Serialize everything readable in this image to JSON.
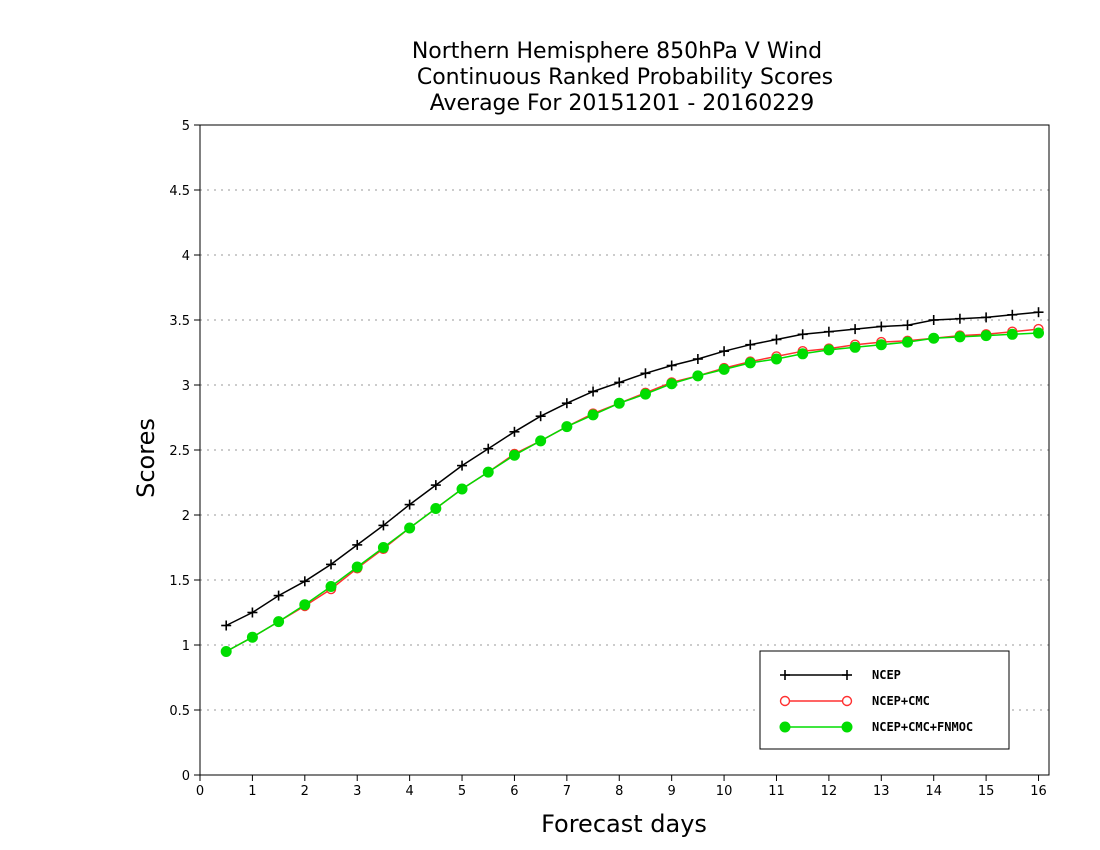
{
  "chart_data": {
    "type": "line",
    "title": [
      "Northern Hemisphere 850hPa V Wind",
      "Continuous Ranked Probability Scores",
      "Average For 20151201 - 20160229"
    ],
    "xlabel": "Forecast days",
    "ylabel": "Scores",
    "xlim": [
      0,
      16.2
    ],
    "ylim": [
      0,
      5
    ],
    "xticks": [
      "0",
      "1",
      "2",
      "3",
      "4",
      "5",
      "6",
      "7",
      "8",
      "9",
      "10",
      "11",
      "12",
      "13",
      "14",
      "15",
      "16"
    ],
    "yticks": [
      "0",
      "0.5",
      "1",
      "1.5",
      "2",
      "2.5",
      "3",
      "3.5",
      "4",
      "4.5",
      "5"
    ],
    "grid": true,
    "legend_position": "bottom-right",
    "x": [
      0.5,
      1,
      1.5,
      2,
      2.5,
      3,
      3.5,
      4,
      4.5,
      5,
      5.5,
      6,
      6.5,
      7,
      7.5,
      8,
      8.5,
      9,
      9.5,
      10,
      10.5,
      11,
      11.5,
      12,
      12.5,
      13,
      13.5,
      14,
      14.5,
      15,
      15.5,
      16
    ],
    "series": [
      {
        "name": "NCEP",
        "color": "#000000",
        "marker": "plus",
        "values": [
          1.15,
          1.25,
          1.38,
          1.49,
          1.62,
          1.77,
          1.92,
          2.08,
          2.23,
          2.38,
          2.51,
          2.64,
          2.76,
          2.86,
          2.95,
          3.02,
          3.09,
          3.15,
          3.2,
          3.26,
          3.31,
          3.35,
          3.39,
          3.41,
          3.43,
          3.45,
          3.46,
          3.5,
          3.51,
          3.52,
          3.54,
          3.56
        ]
      },
      {
        "name": "NCEP+CMC",
        "color": "#ff3030",
        "marker": "open-circle",
        "values": [
          0.95,
          1.06,
          1.18,
          1.3,
          1.43,
          1.59,
          1.74,
          1.9,
          2.05,
          2.2,
          2.33,
          2.47,
          2.57,
          2.68,
          2.78,
          2.86,
          2.94,
          3.02,
          3.07,
          3.13,
          3.18,
          3.22,
          3.26,
          3.28,
          3.31,
          3.33,
          3.34,
          3.36,
          3.38,
          3.39,
          3.41,
          3.43
        ]
      },
      {
        "name": "NCEP+CMC+FNMOC",
        "color": "#00dd00",
        "marker": "filled-circle",
        "values": [
          0.95,
          1.06,
          1.18,
          1.31,
          1.45,
          1.6,
          1.75,
          1.9,
          2.05,
          2.2,
          2.33,
          2.46,
          2.57,
          2.68,
          2.77,
          2.86,
          2.93,
          3.01,
          3.07,
          3.12,
          3.17,
          3.2,
          3.24,
          3.27,
          3.29,
          3.31,
          3.33,
          3.36,
          3.37,
          3.38,
          3.39,
          3.4
        ]
      }
    ]
  }
}
